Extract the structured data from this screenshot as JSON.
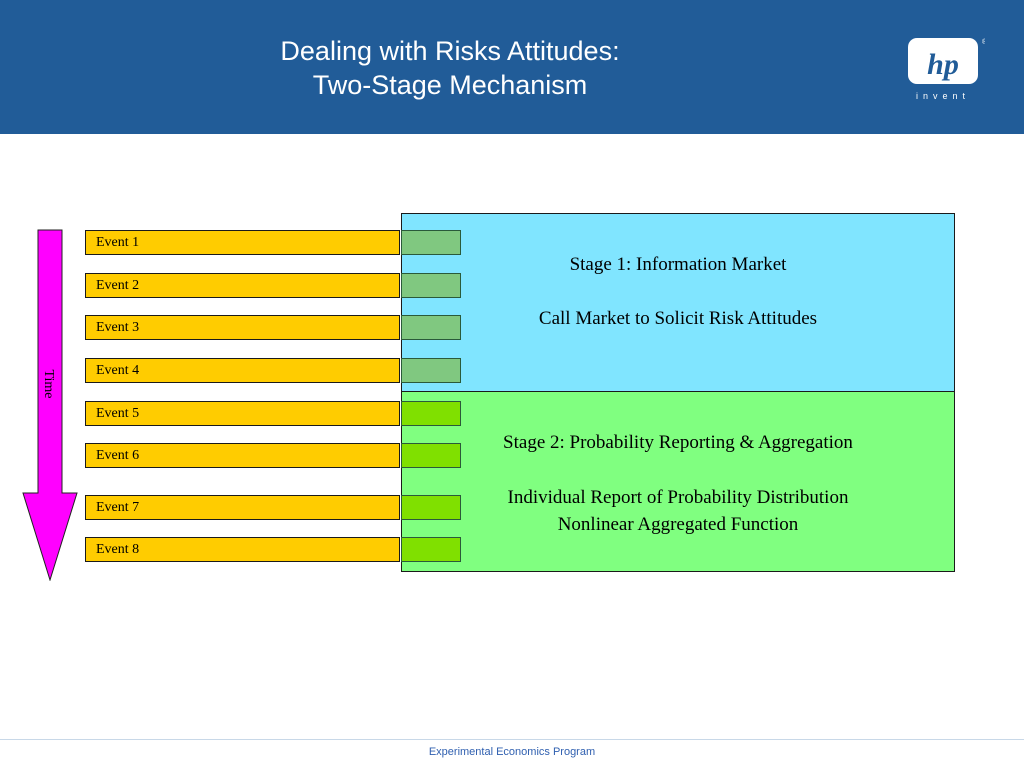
{
  "header": {
    "title_line1": "Dealing with Risks Attitudes:",
    "title_line2": "Two-Stage Mechanism",
    "logo_text": "hp",
    "logo_tagline": "invent",
    "logo_registered": "®",
    "background": "#215c98"
  },
  "timeline": {
    "label": "Time",
    "arrow_color": "#ff00ff"
  },
  "events": [
    {
      "label": "Event 1",
      "stage": 1
    },
    {
      "label": "Event 2",
      "stage": 1
    },
    {
      "label": "Event 3",
      "stage": 1
    },
    {
      "label": "Event 4",
      "stage": 1
    },
    {
      "label": "Event 5",
      "stage": 2
    },
    {
      "label": "Event 6",
      "stage": 2
    },
    {
      "label": "Event 7",
      "stage": 2
    },
    {
      "label": "Event 8",
      "stage": 2
    }
  ],
  "stage1": {
    "title": "Stage 1: Information Market",
    "line1": "Call Market to Solicit Risk Attitudes",
    "color": "#80e5ff",
    "marker_color": "#80c880"
  },
  "stage2": {
    "title": "Stage 2: Probability Reporting & Aggregation",
    "line1": "Individual Report of Probability Distribution",
    "line2": "Nonlinear Aggregated Function",
    "color": "#80ff80",
    "marker_color": "#80e000"
  },
  "event_bar_color": "#ffcc00",
  "footer": {
    "text": "Experimental Economics Program"
  }
}
